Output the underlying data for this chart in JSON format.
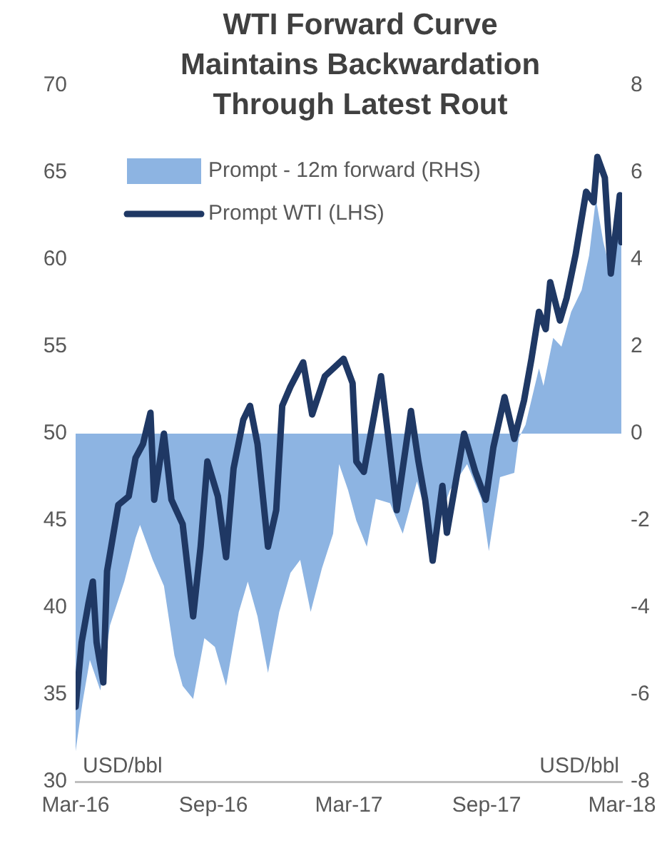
{
  "chart_data": {
    "type": "line",
    "title": "WTI Forward Curve\nMaintains Backwardation\nThrough Latest Rout",
    "ylabel": "USD/bbl",
    "y2label": "USD/bbl",
    "xlim": [
      "2016-03-01",
      "2018-03-01"
    ],
    "xticks": [
      {
        "value": "2016-03-01",
        "label": "Mar-16"
      },
      {
        "value": "2016-09-01",
        "label": "Sep-16"
      },
      {
        "value": "2017-03-01",
        "label": "Mar-17"
      },
      {
        "value": "2017-09-01",
        "label": "Sep-17"
      },
      {
        "value": "2018-03-01",
        "label": "Mar-18"
      }
    ],
    "ylim": [
      30,
      70
    ],
    "yticks": [
      30,
      35,
      40,
      45,
      50,
      55,
      60,
      65,
      70
    ],
    "y2lim": [
      -8,
      8
    ],
    "y2ticks": [
      -8,
      -6,
      -4,
      -2,
      0,
      2,
      4,
      6,
      8
    ],
    "legend": "top left",
    "series": [
      {
        "name": "Prompt - 12m forward (RHS)",
        "type": "area",
        "axis": "y2",
        "color": "#8db4e2",
        "x": [
          "2016-03-01",
          "2016-03-10",
          "2016-03-20",
          "2016-04-03",
          "2016-04-16",
          "2016-05-05",
          "2016-05-20",
          "2016-05-26",
          "2016-06-12",
          "2016-06-27",
          "2016-07-11",
          "2016-07-22",
          "2016-08-05",
          "2016-08-20",
          "2016-09-03",
          "2016-09-18",
          "2016-10-05",
          "2016-10-17",
          "2016-10-30",
          "2016-11-13",
          "2016-11-28",
          "2016-12-13",
          "2016-12-26",
          "2017-01-09",
          "2017-01-24",
          "2017-02-08",
          "2017-02-16",
          "2017-02-28",
          "2017-03-11",
          "2017-03-25",
          "2017-04-06",
          "2017-04-25",
          "2017-05-12",
          "2017-05-31",
          "2017-06-21",
          "2017-07-14",
          "2017-08-06",
          "2017-08-25",
          "2017-09-04",
          "2017-09-19",
          "2017-10-08",
          "2017-10-14",
          "2017-10-23",
          "2017-11-10",
          "2017-11-16",
          "2017-11-29",
          "2017-12-10",
          "2017-12-23",
          "2018-01-06",
          "2018-01-16",
          "2018-01-25",
          "2018-02-04",
          "2018-02-14",
          "2018-02-23",
          "2018-02-28"
        ],
        "values": [
          -7.3,
          -6.2,
          -5.2,
          -5.9,
          -4.4,
          -3.4,
          -2.4,
          -2.1,
          -2.9,
          -3.5,
          -5.1,
          -5.8,
          -6.1,
          -4.7,
          -4.9,
          -5.8,
          -4.1,
          -3.4,
          -4.2,
          -5.5,
          -4.1,
          -3.2,
          -2.9,
          -4.1,
          -3.1,
          -2.3,
          -0.7,
          -1.3,
          -2.0,
          -2.6,
          -1.5,
          -1.6,
          -2.3,
          -1.1,
          -2.4,
          -1.3,
          -0.7,
          -1.5,
          -2.7,
          -1.0,
          -0.9,
          -0.1,
          0.2,
          1.5,
          1.1,
          2.2,
          2.0,
          2.8,
          3.3,
          4.1,
          5.4,
          4.4,
          3.7,
          5.1,
          4.8
        ]
      },
      {
        "name": "Prompt WTI (LHS)",
        "color": "#1f3864",
        "x": [
          "2016-03-01",
          "2016-03-09",
          "2016-03-18",
          "2016-03-24",
          "2016-03-29",
          "2016-04-07",
          "2016-04-12",
          "2016-04-27",
          "2016-05-11",
          "2016-05-20",
          "2016-05-30",
          "2016-06-09",
          "2016-06-14",
          "2016-06-27",
          "2016-07-07",
          "2016-07-22",
          "2016-08-05",
          "2016-08-15",
          "2016-08-24",
          "2016-09-07",
          "2016-09-18",
          "2016-09-28",
          "2016-10-11",
          "2016-10-20",
          "2016-10-30",
          "2016-11-13",
          "2016-11-24",
          "2016-12-02",
          "2016-12-13",
          "2016-12-30",
          "2017-01-11",
          "2017-01-28",
          "2017-02-22",
          "2017-03-06",
          "2017-03-11",
          "2017-03-21",
          "2017-04-04",
          "2017-04-13",
          "2017-04-23",
          "2017-05-04",
          "2017-05-23",
          "2017-06-02",
          "2017-06-11",
          "2017-06-21",
          "2017-07-04",
          "2017-07-10",
          "2017-08-02",
          "2017-08-17",
          "2017-08-31",
          "2017-09-10",
          "2017-09-25",
          "2017-10-08",
          "2017-10-21",
          "2017-10-31",
          "2017-11-10",
          "2017-11-19",
          "2017-11-25",
          "2017-12-08",
          "2017-12-17",
          "2017-12-29",
          "2018-01-12",
          "2018-01-22",
          "2018-01-27",
          "2018-02-06",
          "2018-02-14",
          "2018-02-26",
          "2018-02-28"
        ],
        "values": [
          34.3,
          38.0,
          40.2,
          41.5,
          38.0,
          35.7,
          42.1,
          45.9,
          46.4,
          48.6,
          49.4,
          51.2,
          46.2,
          50.0,
          46.2,
          44.8,
          39.5,
          43.5,
          48.4,
          46.4,
          42.9,
          48.0,
          50.8,
          51.6,
          49.4,
          43.5,
          45.6,
          51.6,
          52.7,
          54.1,
          51.1,
          53.3,
          54.3,
          52.9,
          48.4,
          47.8,
          51.1,
          53.3,
          49.7,
          45.6,
          51.3,
          48.4,
          46.2,
          42.7,
          47.0,
          44.3,
          50.0,
          47.8,
          46.2,
          49.2,
          52.1,
          49.7,
          51.9,
          54.3,
          57.0,
          56.0,
          58.7,
          56.5,
          57.8,
          60.3,
          63.9,
          63.3,
          65.9,
          64.7,
          59.2,
          63.7,
          61.0
        ]
      }
    ]
  }
}
